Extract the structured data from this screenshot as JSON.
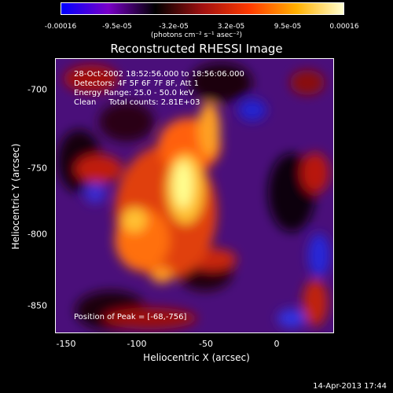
{
  "colorbar": {
    "ticks": [
      "-0.00016",
      "-9.5e-05",
      "-3.2e-05",
      "3.2e-05",
      "9.5e-05",
      "0.00016"
    ],
    "units": "(photons cm⁻² s⁻¹ asec⁻²)",
    "gradient": [
      "#0000ff",
      "#7a00c8",
      "#000000",
      "#a01010",
      "#ff3a00",
      "#ffb000",
      "#ffffd0"
    ]
  },
  "title": "Reconstructed RHESSI Image",
  "annotations": {
    "line1": "28-Oct-2002 18:52:56.000 to 18:56:06.000",
    "line2": "Detectors: 4F 5F 6F 7F 8F, Att 1",
    "line3": "Energy Range: 25.0 - 50.0 keV",
    "line4": "Clean     Total counts: 2.81E+03"
  },
  "peak": "Position of Peak = [-68,-756]",
  "axes": {
    "xlabel": "Heliocentric X (arcsec)",
    "ylabel": "Heliocentric Y (arcsec)",
    "xticks": [
      "-150",
      "-100",
      "-50",
      "0"
    ],
    "yticks": [
      "-700",
      "-750",
      "-800",
      "-850"
    ]
  },
  "timestamp": "14-Apr-2013 17:44"
}
